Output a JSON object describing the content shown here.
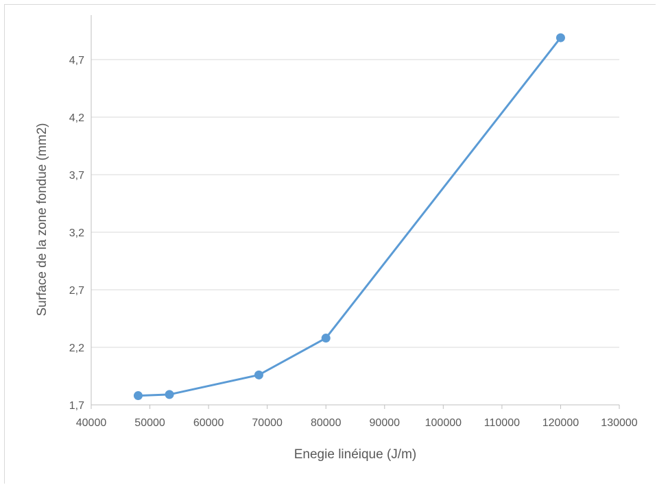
{
  "chart_data": {
    "type": "scatter",
    "title": "",
    "xlabel": "Enegie linéique (J/m)",
    "ylabel": "Surface de la zone fondue (mm2)",
    "xlim": [
      40000,
      130000
    ],
    "ylim": [
      1.7,
      5.0
    ],
    "x_ticks": [
      "40000",
      "50000",
      "60000",
      "70000",
      "80000",
      "90000",
      "100000",
      "110000",
      "120000",
      "130000"
    ],
    "y_ticks": [
      "1,7",
      "2,2",
      "2,7",
      "3,2",
      "3,7",
      "4,2",
      "4,7"
    ],
    "grid": "horizontal",
    "legend": "none",
    "series": [
      {
        "color": "#5b9bd5",
        "points": [
          {
            "x": 48000,
            "y": 1.78
          },
          {
            "x": 53333,
            "y": 1.79
          },
          {
            "x": 68571,
            "y": 1.96
          },
          {
            "x": 80000,
            "y": 2.28
          },
          {
            "x": 120000,
            "y": 4.89
          }
        ]
      }
    ]
  }
}
